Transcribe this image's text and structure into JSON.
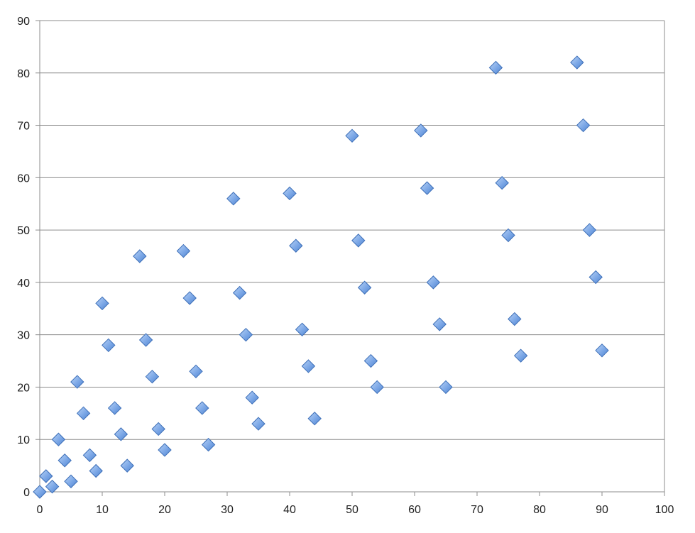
{
  "colors": {
    "marker_fill": "#7BA7E6",
    "marker_stroke": "#3D6FB8",
    "gridline": "#8C8C8C",
    "axis": "#8C8C8C",
    "background": "#FFFFFF"
  },
  "chart_data": {
    "type": "scatter",
    "title": "",
    "xlabel": "",
    "ylabel": "",
    "xlim": [
      0,
      100
    ],
    "ylim": [
      0,
      90
    ],
    "x_ticks": [
      0,
      10,
      20,
      30,
      40,
      50,
      60,
      70,
      80,
      90,
      100
    ],
    "y_ticks": [
      0,
      10,
      20,
      30,
      40,
      50,
      60,
      70,
      80,
      90
    ],
    "grid": "horizontal",
    "legend": "none",
    "marker": "diamond",
    "series": [
      {
        "points": [
          [
            0,
            0
          ],
          [
            1,
            3
          ],
          [
            2,
            1
          ],
          [
            3,
            10
          ],
          [
            4,
            6
          ],
          [
            5,
            2
          ],
          [
            6,
            21
          ],
          [
            7,
            15
          ],
          [
            8,
            7
          ],
          [
            9,
            4
          ],
          [
            10,
            36
          ],
          [
            11,
            28
          ],
          [
            12,
            16
          ],
          [
            13,
            11
          ],
          [
            14,
            5
          ],
          [
            16,
            45
          ],
          [
            17,
            29
          ],
          [
            18,
            22
          ],
          [
            19,
            12
          ],
          [
            20,
            8
          ],
          [
            23,
            46
          ],
          [
            24,
            37
          ],
          [
            25,
            23
          ],
          [
            26,
            16
          ],
          [
            27,
            9
          ],
          [
            31,
            56
          ],
          [
            32,
            38
          ],
          [
            33,
            30
          ],
          [
            34,
            18
          ],
          [
            35,
            13
          ],
          [
            40,
            57
          ],
          [
            41,
            47
          ],
          [
            42,
            31
          ],
          [
            43,
            24
          ],
          [
            44,
            14
          ],
          [
            50,
            68
          ],
          [
            51,
            48
          ],
          [
            52,
            39
          ],
          [
            53,
            25
          ],
          [
            54,
            20
          ],
          [
            61,
            69
          ],
          [
            62,
            58
          ],
          [
            63,
            40
          ],
          [
            64,
            32
          ],
          [
            65,
            20
          ],
          [
            73,
            81
          ],
          [
            74,
            59
          ],
          [
            75,
            49
          ],
          [
            76,
            33
          ],
          [
            77,
            26
          ],
          [
            86,
            82
          ],
          [
            87,
            70
          ],
          [
            88,
            50
          ],
          [
            89,
            41
          ],
          [
            90,
            27
          ]
        ]
      }
    ]
  }
}
